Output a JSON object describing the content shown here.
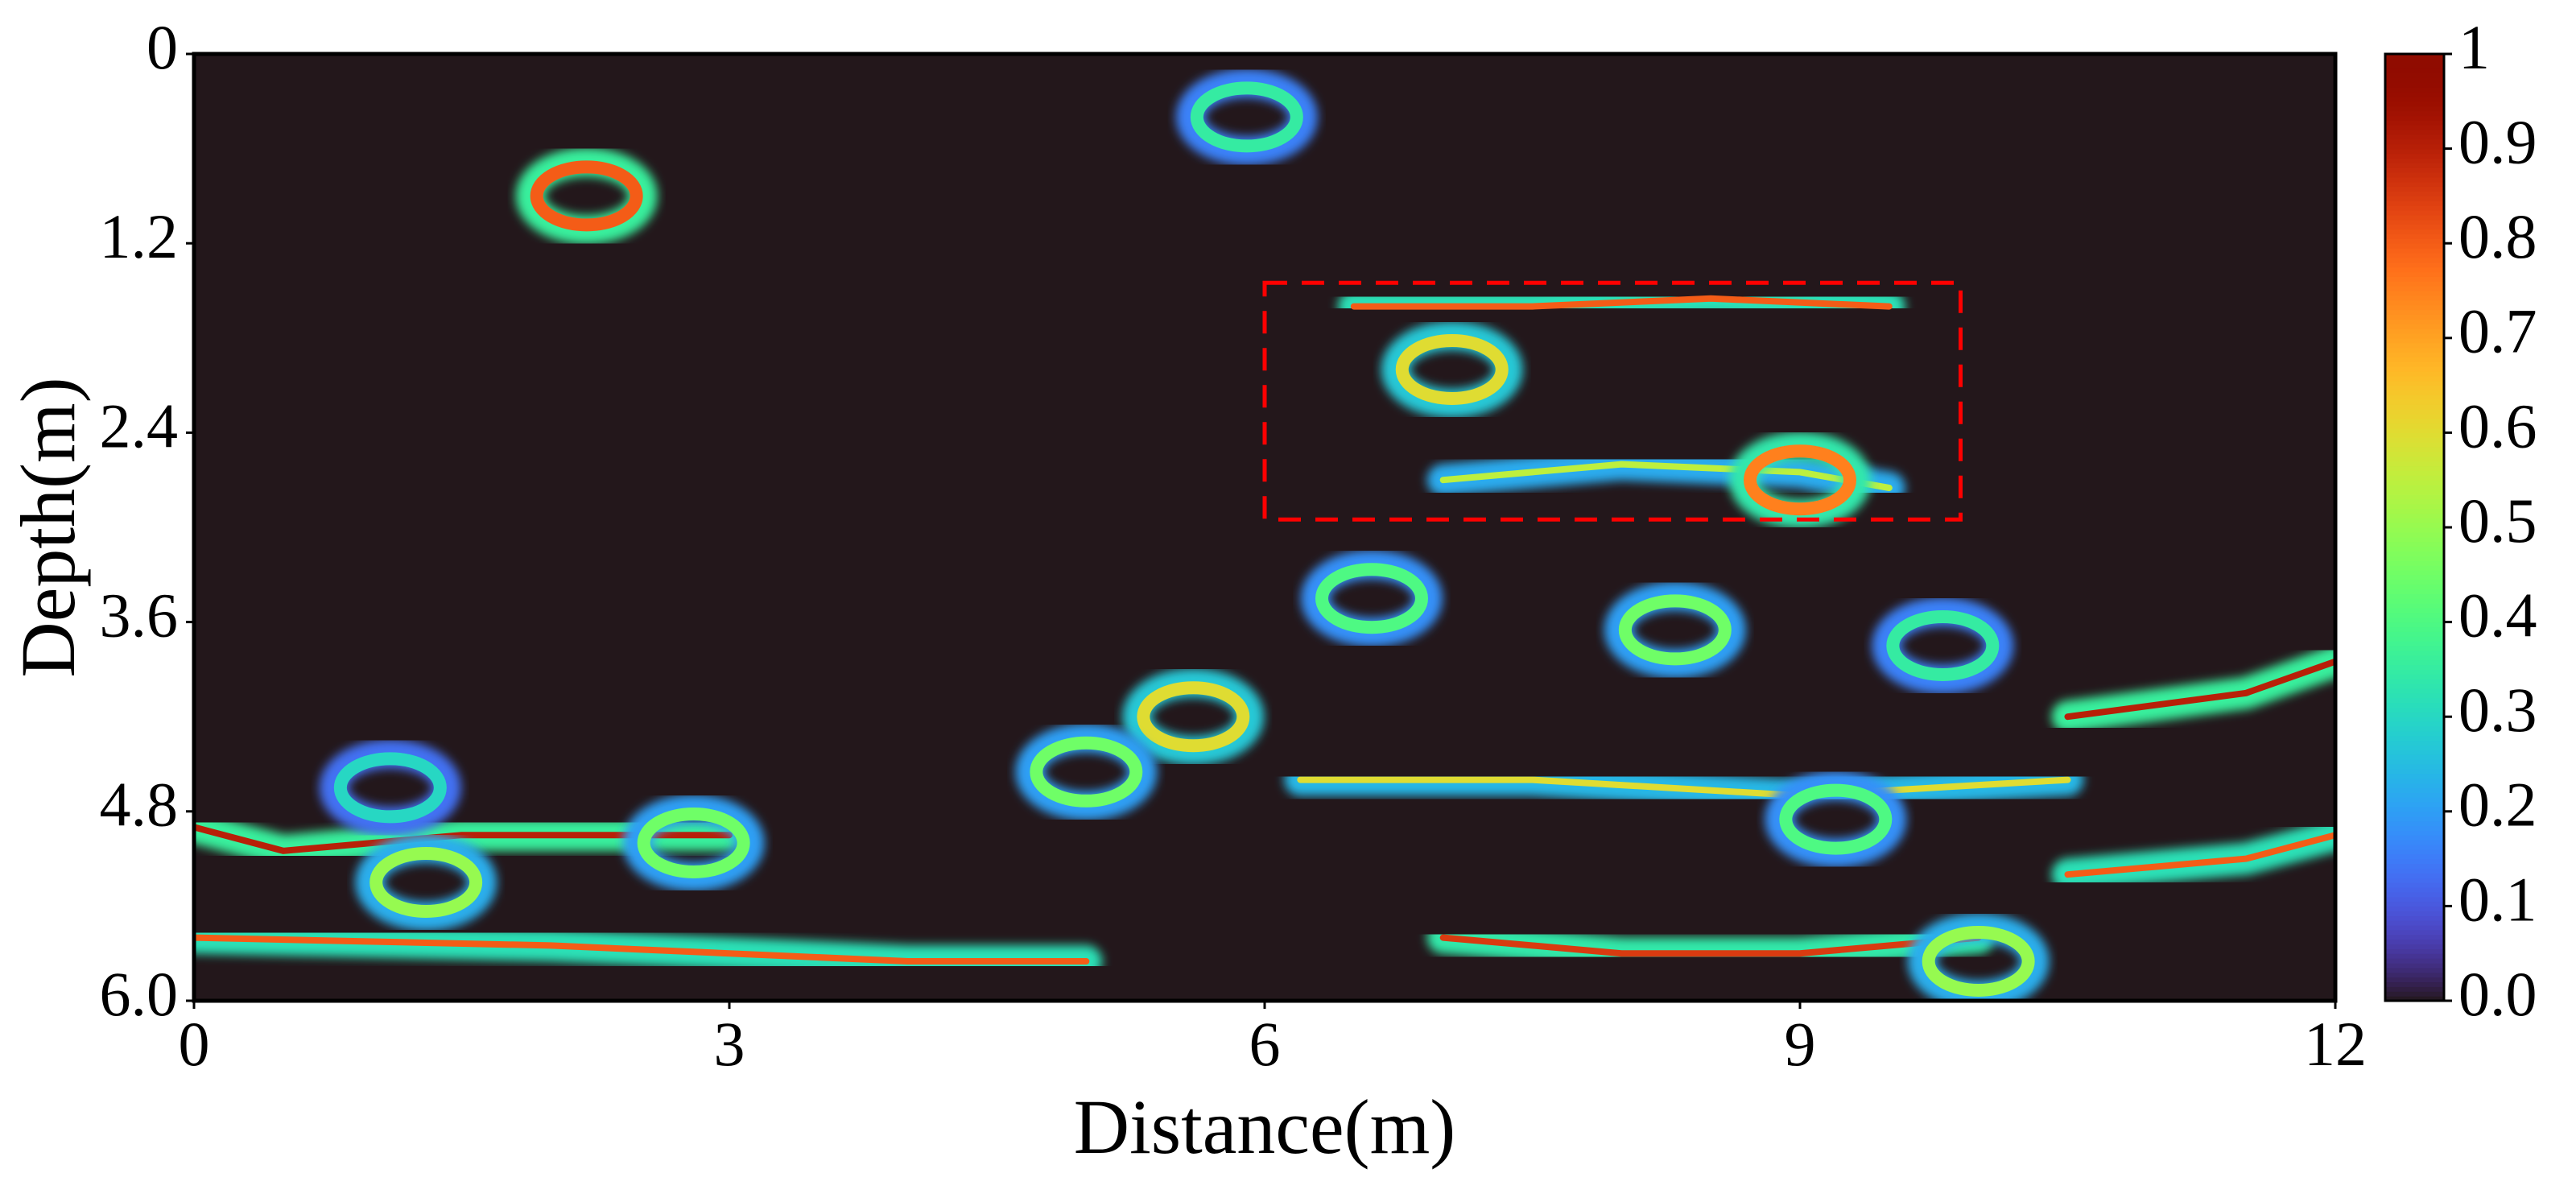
{
  "chart_data": {
    "type": "heatmap",
    "xlabel": "Distance(m)",
    "ylabel": "Depth(m)",
    "xlim": [
      0,
      12
    ],
    "ylim": [
      6,
      0
    ],
    "xticks": [
      0,
      3,
      6,
      9,
      12
    ],
    "yticks": [
      0,
      1.2,
      2.4,
      3.6,
      4.8,
      {
        "value": 6,
        "label": "6.0"
      }
    ],
    "colormap": "turbo",
    "clim": [
      0,
      1
    ],
    "cticks": [
      {
        "value": 0,
        "label": "0.0"
      },
      0.1,
      0.2,
      0.3,
      0.4,
      0.5,
      0.6,
      0.7,
      0.8,
      0.9,
      1
    ],
    "hotspots": [
      {
        "x": 2.2,
        "y": 0.9,
        "value": 0.8
      },
      {
        "x": 5.9,
        "y": 0.4,
        "value": 0.35
      },
      {
        "x": 7.05,
        "y": 2.0,
        "value": 0.6
      },
      {
        "x": 9.0,
        "y": 2.7,
        "value": 0.75
      },
      {
        "x": 6.6,
        "y": 3.45,
        "value": 0.4
      },
      {
        "x": 8.3,
        "y": 3.65,
        "value": 0.45
      },
      {
        "x": 9.8,
        "y": 3.75,
        "value": 0.35
      },
      {
        "x": 5.6,
        "y": 4.2,
        "value": 0.6
      },
      {
        "x": 1.3,
        "y": 5.25,
        "value": 0.5
      },
      {
        "x": 2.8,
        "y": 5.0,
        "value": 0.45
      },
      {
        "x": 5.0,
        "y": 4.55,
        "value": 0.45
      },
      {
        "x": 9.2,
        "y": 4.85,
        "value": 0.4
      },
      {
        "x": 10.0,
        "y": 5.75,
        "value": 0.5
      },
      {
        "x": 1.1,
        "y": 4.65,
        "value": 0.3
      }
    ],
    "reflectors": [
      {
        "x": [
          6.5,
          7.5,
          8.5,
          9.5
        ],
        "y": [
          1.6,
          1.6,
          1.55,
          1.6
        ],
        "value": 0.8
      },
      {
        "x": [
          7.0,
          8.0,
          9.0,
          9.5
        ],
        "y": [
          2.7,
          2.6,
          2.65,
          2.75
        ],
        "value": 0.55
      },
      {
        "x": [
          0,
          0.5,
          1.5,
          3.0
        ],
        "y": [
          4.9,
          5.05,
          4.95,
          4.95
        ],
        "value": 0.9
      },
      {
        "x": [
          0,
          2,
          4,
          5
        ],
        "y": [
          5.6,
          5.65,
          5.75,
          5.75
        ],
        "value": 0.8
      },
      {
        "x": [
          7,
          8,
          9,
          10
        ],
        "y": [
          5.6,
          5.7,
          5.7,
          5.6
        ],
        "value": 0.85
      },
      {
        "x": [
          10.5,
          11.5,
          12
        ],
        "y": [
          4.2,
          4.05,
          3.85
        ],
        "value": 0.9
      },
      {
        "x": [
          10.5,
          11.5,
          12
        ],
        "y": [
          5.2,
          5.1,
          4.95
        ],
        "value": 0.8
      },
      {
        "x": [
          6.2,
          7.5,
          9.0,
          10.5
        ],
        "y": [
          4.6,
          4.6,
          4.7,
          4.6
        ],
        "value": 0.6
      }
    ],
    "highlight_box": {
      "x": [
        6,
        9.9
      ],
      "y": [
        1.45,
        2.95
      ],
      "color": "#ff0000"
    }
  }
}
